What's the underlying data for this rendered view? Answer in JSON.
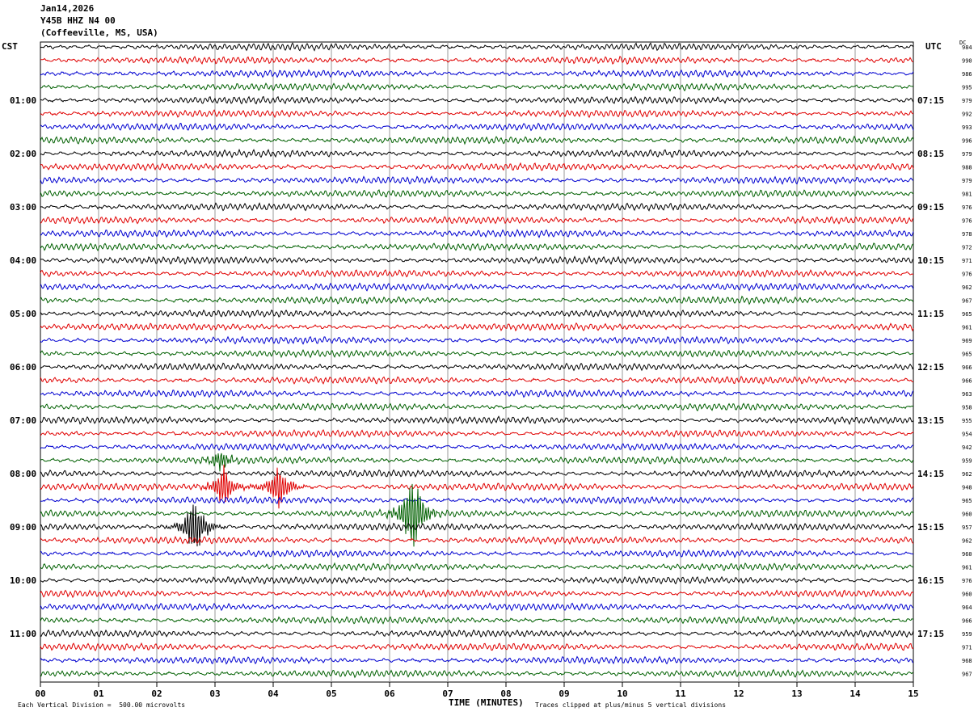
{
  "header": {
    "date": "Jan14,2026",
    "station": "Y45B HHZ N4 00",
    "location": "(Coffeeville, MS, USA)"
  },
  "left_tz": "CST",
  "right_tz": "UTC",
  "dc_label": "DC",
  "colors": [
    "#000000",
    "#e00000",
    "#0000d0",
    "#006000"
  ],
  "chart_data": {
    "type": "line",
    "title": "",
    "xlabel": "TIME (MINUTES)",
    "ylabel": "",
    "x_ticks": [
      "00",
      "01",
      "02",
      "03",
      "04",
      "05",
      "06",
      "07",
      "08",
      "09",
      "10",
      "11",
      "12",
      "13",
      "14",
      "15"
    ],
    "xlim": [
      0,
      15
    ],
    "grid": true,
    "left_hour_labels": [
      "01:00",
      "02:00",
      "03:00",
      "04:00",
      "05:00",
      "06:00",
      "07:00",
      "08:00",
      "09:00",
      "10:00",
      "11:00"
    ],
    "right_hour_labels": [
      "07:15",
      "08:15",
      "09:15",
      "10:15",
      "11:15",
      "12:15",
      "13:15",
      "14:15",
      "15:15",
      "16:15",
      "17:15"
    ],
    "dc_offsets": [
      984,
      990,
      986,
      995,
      979,
      992,
      993,
      996,
      979,
      988,
      979,
      981,
      976,
      976,
      978,
      972,
      971,
      976,
      962,
      967,
      965,
      961,
      969,
      965,
      966,
      966,
      963,
      958,
      955,
      954,
      942,
      959,
      962,
      948,
      965,
      960,
      957,
      962,
      960,
      961,
      976,
      960,
      964,
      966,
      959,
      971,
      968,
      967
    ],
    "events": [
      {
        "row": 31,
        "minute": 3.1,
        "amp": 16
      },
      {
        "row": 33,
        "minute": 3.15,
        "amp": 30
      },
      {
        "row": 33,
        "minute": 4.1,
        "amp": 34
      },
      {
        "row": 35,
        "minute": 6.4,
        "amp": 60
      },
      {
        "row": 36,
        "minute": 2.65,
        "amp": 45
      }
    ]
  },
  "footer": {
    "scale": "Each Vertical Division =  500.00 microvolts",
    "clip": "Traces clipped at plus/minus 5 vertical divisions"
  }
}
